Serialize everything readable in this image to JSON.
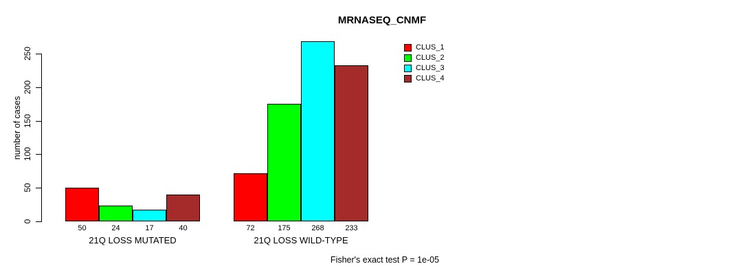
{
  "chart_data": {
    "type": "bar",
    "title": "MRNASEQ_CNMF",
    "ylabel": "number of cases",
    "ylim": [
      0,
      250
    ],
    "yticks": [
      0,
      50,
      100,
      150,
      200,
      250
    ],
    "grid": false,
    "legend_position": "top-right",
    "bar_labels_shown": true,
    "groups": [
      {
        "label": "21Q LOSS MUTATED",
        "values": [
          50,
          24,
          17,
          40
        ]
      },
      {
        "label": "21Q LOSS WILD-TYPE",
        "values": [
          72,
          175,
          268,
          233
        ]
      }
    ],
    "series": [
      {
        "name": "CLUS_1",
        "color": "#FF0000",
        "values": [
          50,
          72
        ]
      },
      {
        "name": "CLUS_2",
        "color": "#00FF00",
        "values": [
          24,
          175
        ]
      },
      {
        "name": "CLUS_3",
        "color": "#00FFFF",
        "values": [
          17,
          268
        ]
      },
      {
        "name": "CLUS_4",
        "color": "#A52A2A",
        "values": [
          40,
          233
        ]
      }
    ],
    "annotation": "Fisher's exact test P = 1e-05"
  }
}
